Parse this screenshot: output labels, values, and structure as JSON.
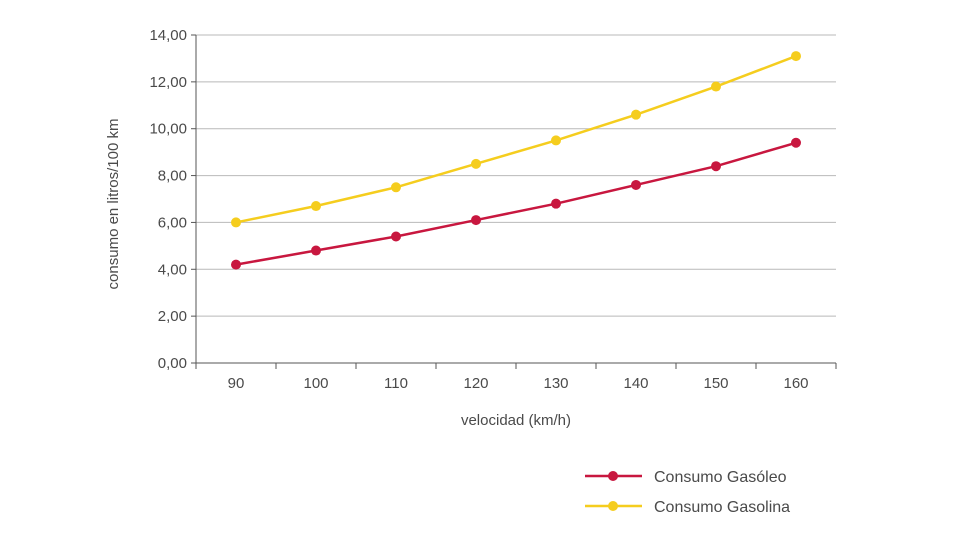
{
  "chart_data": {
    "type": "line",
    "title": "",
    "xlabel": "velocidad (km/h)",
    "ylabel": "consumo en litros/100 km",
    "categories": [
      "90",
      "100",
      "110",
      "120",
      "130",
      "140",
      "150",
      "160"
    ],
    "ylim": [
      0,
      14
    ],
    "yticks": [
      "0,00",
      "2,00",
      "4,00",
      "6,00",
      "8,00",
      "10,00",
      "12,00",
      "14,00"
    ],
    "grid": true,
    "legend_position": "bottom-right",
    "series": [
      {
        "name": "Consumo Gasóleo",
        "color": "#c8173f",
        "values": [
          4.2,
          4.8,
          5.4,
          6.1,
          6.8,
          7.6,
          8.4,
          9.4
        ]
      },
      {
        "name": "Consumo Gasolina",
        "color": "#f5cd1e",
        "values": [
          6.0,
          6.7,
          7.5,
          8.5,
          9.5,
          10.6,
          11.8,
          13.1
        ]
      }
    ]
  }
}
